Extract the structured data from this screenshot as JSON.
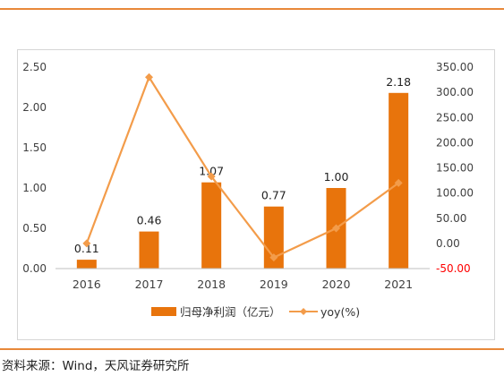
{
  "source_note": "资料来源：Wind，天风证券研究所",
  "colors": {
    "bar": "#e8740c",
    "line": "#f39c4a",
    "accent_rule": "#e8883a",
    "negative_tick": "#ff0000"
  },
  "chart_data": {
    "type": "bar",
    "categories": [
      "2016",
      "2017",
      "2018",
      "2019",
      "2020",
      "2021"
    ],
    "series": [
      {
        "name": "归母净利润（亿元）",
        "type": "bar",
        "axis": "left",
        "values": [
          0.11,
          0.46,
          1.07,
          0.77,
          1.0,
          2.18
        ],
        "data_labels": [
          "0.11",
          "0.46",
          "1.07",
          "0.77",
          "1.00",
          "2.18"
        ]
      },
      {
        "name": "yoy(%)",
        "type": "line",
        "axis": "right",
        "values": [
          0,
          330,
          133,
          -28,
          30,
          120
        ]
      }
    ],
    "y_left": {
      "min": 0,
      "max": 2.5,
      "ticks": [
        "0.00",
        "0.50",
        "1.00",
        "1.50",
        "2.00",
        "2.50"
      ]
    },
    "y_right": {
      "min": -50,
      "max": 350,
      "ticks": [
        "-50.00",
        "0.00",
        "50.00",
        "100.00",
        "150.00",
        "200.00",
        "250.00",
        "300.00",
        "350.00"
      ]
    },
    "legend_position": "bottom",
    "grid": false
  }
}
